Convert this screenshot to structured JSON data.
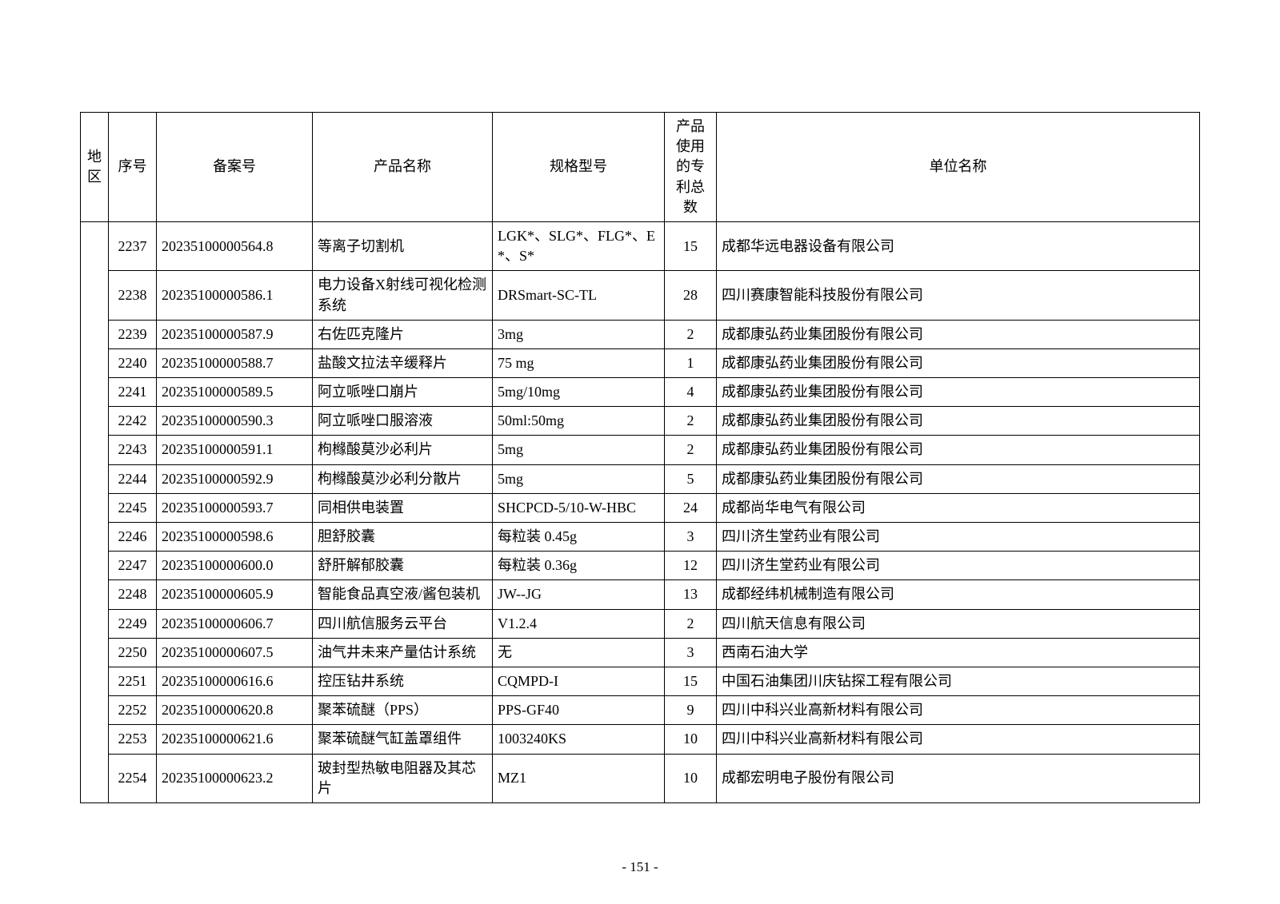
{
  "table": {
    "columns": [
      {
        "key": "region",
        "label": "地区",
        "class": "col-region"
      },
      {
        "key": "seq",
        "label": "序号",
        "class": "col-seq"
      },
      {
        "key": "filing",
        "label": "备案号",
        "class": "col-filing"
      },
      {
        "key": "product",
        "label": "产品名称",
        "class": "col-product"
      },
      {
        "key": "spec",
        "label": "规格型号",
        "class": "col-spec"
      },
      {
        "key": "patents",
        "label": "产品使用的专利总数",
        "class": "col-patents"
      },
      {
        "key": "company",
        "label": "单位名称",
        "class": "col-company"
      }
    ],
    "rows": [
      {
        "seq": "2237",
        "filing": "20235100000564.8",
        "product": "等离子切割机",
        "spec": "LGK*、SLG*、FLG*、E*、S*",
        "patents": "15",
        "company": "成都华远电器设备有限公司"
      },
      {
        "seq": "2238",
        "filing": "20235100000586.1",
        "product": "电力设备X射线可视化检测系统",
        "spec": "DRSmart-SC-TL",
        "patents": "28",
        "company": "四川赛康智能科技股份有限公司"
      },
      {
        "seq": "2239",
        "filing": "20235100000587.9",
        "product": "右佐匹克隆片",
        "spec": "3mg",
        "patents": "2",
        "company": "成都康弘药业集团股份有限公司"
      },
      {
        "seq": "2240",
        "filing": "20235100000588.7",
        "product": "盐酸文拉法辛缓释片",
        "spec": "75 mg",
        "patents": "1",
        "company": "成都康弘药业集团股份有限公司"
      },
      {
        "seq": "2241",
        "filing": "20235100000589.5",
        "product": "阿立哌唑口崩片",
        "spec": "5mg/10mg",
        "patents": "4",
        "company": "成都康弘药业集团股份有限公司"
      },
      {
        "seq": "2242",
        "filing": "20235100000590.3",
        "product": "阿立哌唑口服溶液",
        "spec": "50ml:50mg",
        "patents": "2",
        "company": "成都康弘药业集团股份有限公司"
      },
      {
        "seq": "2243",
        "filing": "20235100000591.1",
        "product": "枸橼酸莫沙必利片",
        "spec": "5mg",
        "patents": "2",
        "company": "成都康弘药业集团股份有限公司"
      },
      {
        "seq": "2244",
        "filing": "20235100000592.9",
        "product": "枸橼酸莫沙必利分散片",
        "spec": "5mg",
        "patents": "5",
        "company": "成都康弘药业集团股份有限公司"
      },
      {
        "seq": "2245",
        "filing": "20235100000593.7",
        "product": "同相供电装置",
        "spec": "SHCPCD-5/10-W-HBC",
        "patents": "24",
        "company": "成都尚华电气有限公司"
      },
      {
        "seq": "2246",
        "filing": "20235100000598.6",
        "product": "胆舒胶囊",
        "spec": "每粒装 0.45g",
        "patents": "3",
        "company": "四川济生堂药业有限公司"
      },
      {
        "seq": "2247",
        "filing": "20235100000600.0",
        "product": "舒肝解郁胶囊",
        "spec": "每粒装 0.36g",
        "patents": "12",
        "company": "四川济生堂药业有限公司"
      },
      {
        "seq": "2248",
        "filing": "20235100000605.9",
        "product": "智能食品真空液/酱包装机",
        "spec": "JW--JG",
        "patents": "13",
        "company": "成都经纬机械制造有限公司"
      },
      {
        "seq": "2249",
        "filing": "20235100000606.7",
        "product": "四川航信服务云平台",
        "spec": "V1.2.4",
        "patents": "2",
        "company": "四川航天信息有限公司"
      },
      {
        "seq": "2250",
        "filing": "20235100000607.5",
        "product": "油气井未来产量估计系统",
        "spec": "无",
        "patents": "3",
        "company": "西南石油大学"
      },
      {
        "seq": "2251",
        "filing": "20235100000616.6",
        "product": "控压钻井系统",
        "spec": "CQMPD-I",
        "patents": "15",
        "company": "中国石油集团川庆钻探工程有限公司"
      },
      {
        "seq": "2252",
        "filing": "20235100000620.8",
        "product": "聚苯硫醚（PPS）",
        "spec": "PPS-GF40",
        "patents": "9",
        "company": "四川中科兴业高新材料有限公司"
      },
      {
        "seq": "2253",
        "filing": "20235100000621.6",
        "product": "聚苯硫醚气缸盖罩组件",
        "spec": "1003240KS",
        "patents": "10",
        "company": "四川中科兴业高新材料有限公司"
      },
      {
        "seq": "2254",
        "filing": "20235100000623.2",
        "product": "玻封型热敏电阻器及其芯片",
        "spec": "MZ1",
        "patents": "10",
        "company": "成都宏明电子股份有限公司"
      }
    ]
  },
  "pageNumber": "- 151 -"
}
